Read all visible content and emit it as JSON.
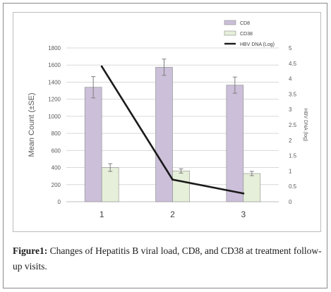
{
  "chart_data": {
    "type": "bar+line",
    "categories": [
      "1",
      "2",
      "3"
    ],
    "series": [
      {
        "name": "CD8",
        "kind": "bar",
        "axis": "left",
        "values": [
          1340,
          1575,
          1365
        ],
        "errors": [
          125,
          95,
          95
        ],
        "color": "#cbbfd9"
      },
      {
        "name": "CD38",
        "kind": "bar",
        "axis": "left",
        "values": [
          400,
          360,
          330
        ],
        "errors": [
          45,
          25,
          25
        ],
        "color": "#e6efd9"
      },
      {
        "name": "HBV DNA (Log)",
        "kind": "line",
        "axis": "right",
        "values": [
          4.4,
          0.72,
          0.27
        ],
        "color": "#1a1a1a"
      }
    ],
    "ylabel": "Mean Count (±SE)",
    "y2label": "HBV DNA (log)",
    "ylim": [
      0,
      1800
    ],
    "yticks": [
      "0",
      "200",
      "400",
      "600",
      "800",
      "1000",
      "1200",
      "1400",
      "1600",
      "1800"
    ],
    "y2lim": [
      0,
      5
    ],
    "y2ticks": [
      "0",
      "0.5",
      "1",
      "1.5",
      "2",
      "2.5",
      "3",
      "3.5",
      "4",
      "4.5",
      "5"
    ],
    "grid": true,
    "legend_position": "top-right"
  },
  "caption": {
    "label": "Figure1:",
    "text": " Changes of Hepatitis B viral load, CD8, and CD38 at treatment follow-up visits."
  }
}
